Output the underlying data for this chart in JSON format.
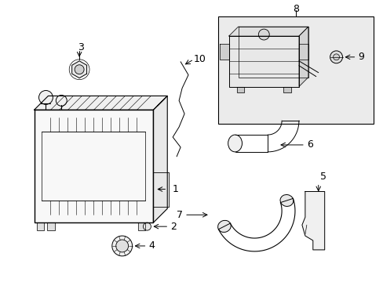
{
  "bg_color": "#ffffff",
  "line_color": "#000000",
  "lw": 0.7,
  "fig_width": 4.89,
  "fig_height": 3.6,
  "dpi": 100
}
